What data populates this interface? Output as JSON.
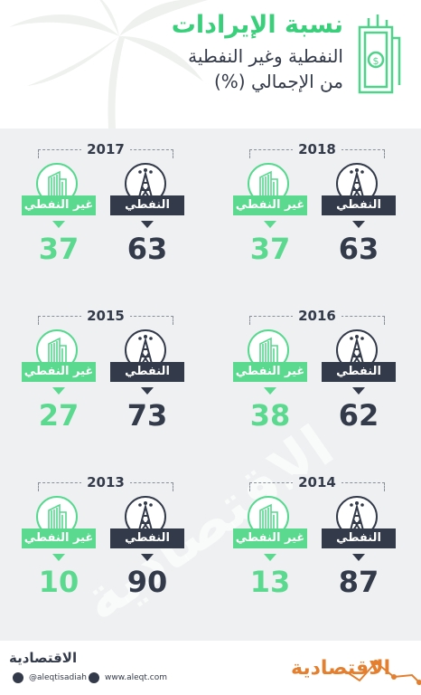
{
  "header": {
    "title_line1": "نسبة الإيرادات",
    "title_line2": "النفطية وغير النفطية",
    "title_line3": "من الإجمالي (%)",
    "icon": "money-bill-icon"
  },
  "labels": {
    "oil": "النفطي",
    "non_oil": "غير النفطي"
  },
  "chart_data": [
    {
      "type": "bar",
      "title": "2018",
      "categories": [
        "النفطي",
        "غير النفطي"
      ],
      "values": [
        63,
        37
      ]
    },
    {
      "type": "bar",
      "title": "2017",
      "categories": [
        "النفطي",
        "غير النفطي"
      ],
      "values": [
        63,
        37
      ]
    },
    {
      "type": "bar",
      "title": "2016",
      "categories": [
        "النفطي",
        "غير النفطي"
      ],
      "values": [
        62,
        38
      ]
    },
    {
      "type": "bar",
      "title": "2015",
      "categories": [
        "النفطي",
        "غير النفطي"
      ],
      "values": [
        73,
        27
      ]
    },
    {
      "type": "bar",
      "title": "2014",
      "categories": [
        "النفطي",
        "غير النفطي"
      ],
      "values": [
        87,
        13
      ]
    },
    {
      "type": "bar",
      "title": "2013",
      "categories": [
        "النفطي",
        "غير النفطي"
      ],
      "values": [
        90,
        10
      ]
    }
  ],
  "watermark": "الاقتصادية",
  "footer": {
    "brand_small": "الاقتصادية",
    "twitter_handle": "@aleqtisadiah",
    "website": "www.aleqt.com",
    "brand_big": "الاقتصادية"
  },
  "colors": {
    "dark": "#333a4a",
    "green": "#5ad98f",
    "orange": "#e37f2e"
  }
}
